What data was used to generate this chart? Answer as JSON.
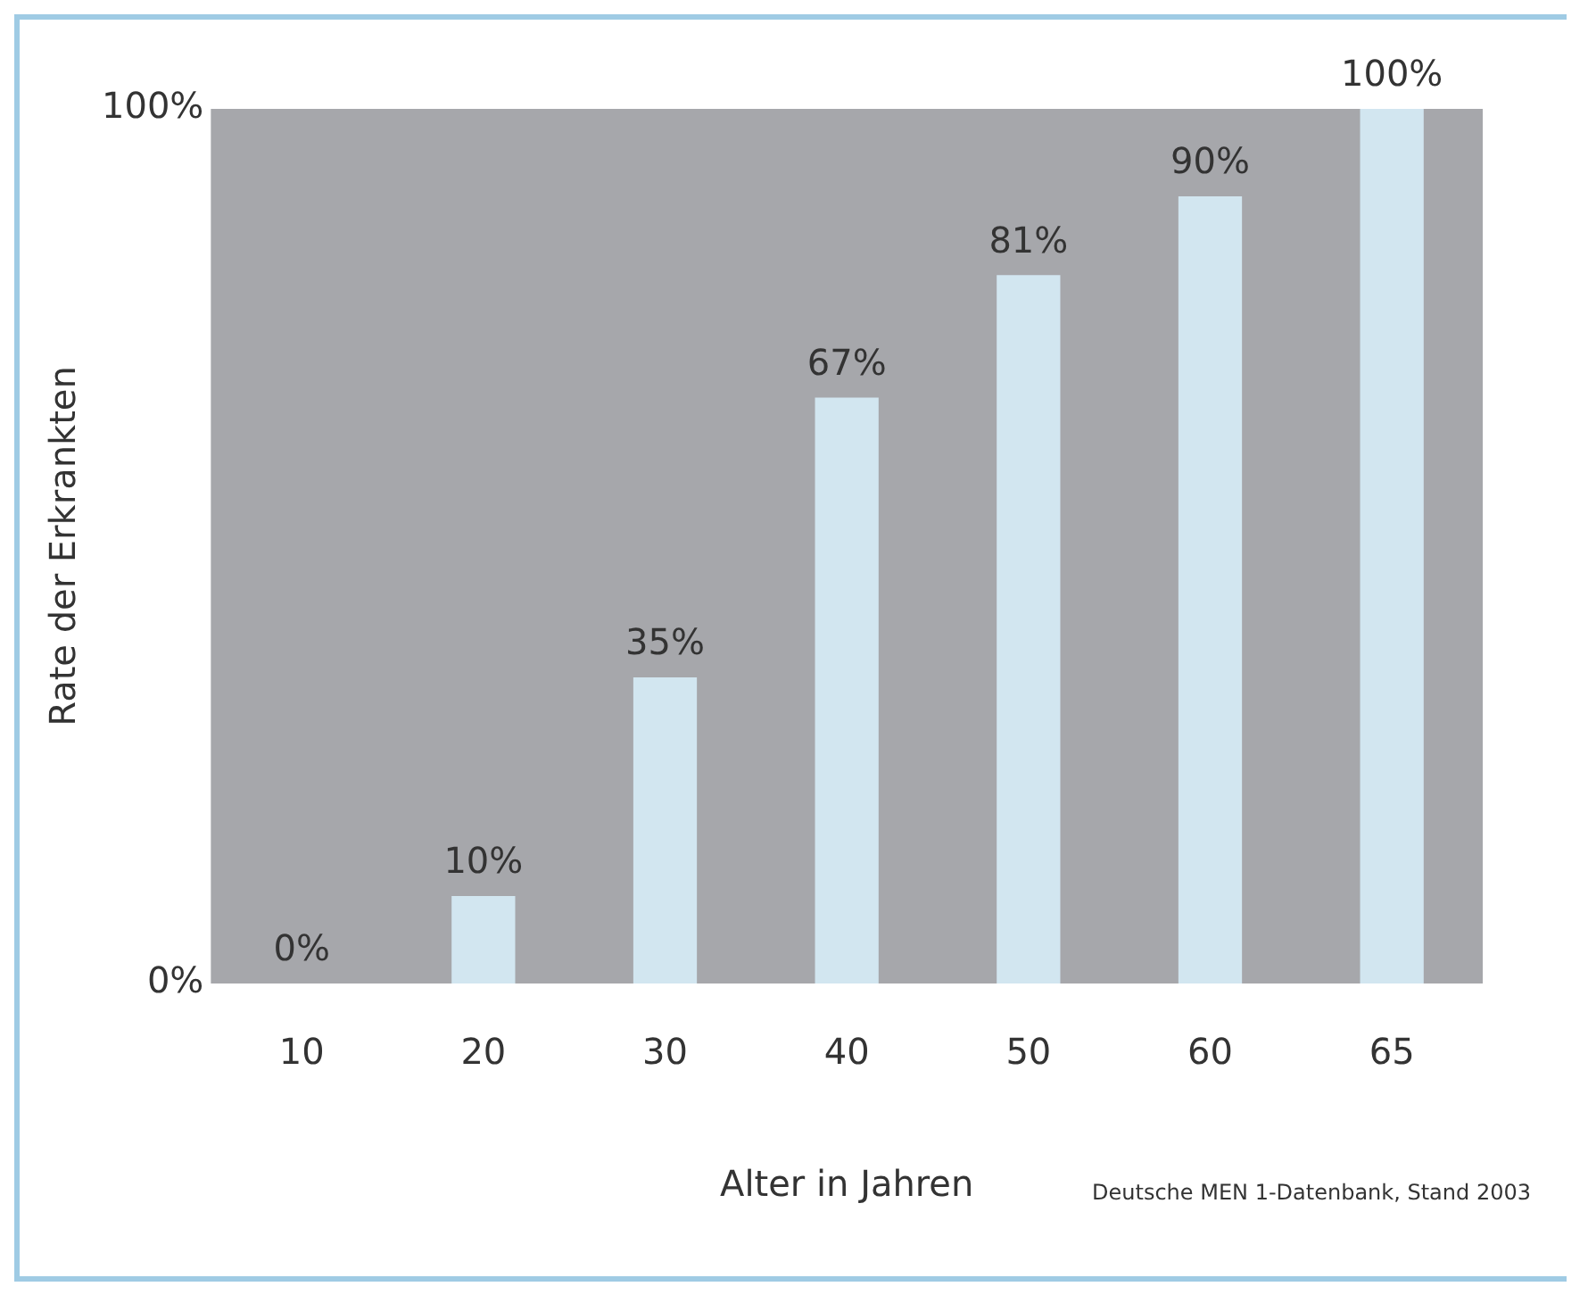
{
  "chart_data": {
    "type": "bar",
    "xlabel": "Alter in Jahren",
    "ylabel": "Rate der Erkrankten",
    "categories": [
      "10",
      "20",
      "30",
      "40",
      "50",
      "60",
      "65"
    ],
    "values": [
      0,
      10,
      35,
      67,
      81,
      90,
      100
    ],
    "value_labels": [
      "0%",
      "10%",
      "35%",
      "67%",
      "81%",
      "90%",
      "100%"
    ],
    "color": "#d2e6f0",
    "ylim": [
      0,
      100
    ],
    "yticks": [
      {
        "value": 0,
        "label": "0%"
      },
      {
        "value": 100,
        "label": "100%"
      }
    ],
    "grid": false,
    "legend": false,
    "annotations": [
      "Deutsche MEN 1-Datenbank, Stand 2003"
    ]
  }
}
